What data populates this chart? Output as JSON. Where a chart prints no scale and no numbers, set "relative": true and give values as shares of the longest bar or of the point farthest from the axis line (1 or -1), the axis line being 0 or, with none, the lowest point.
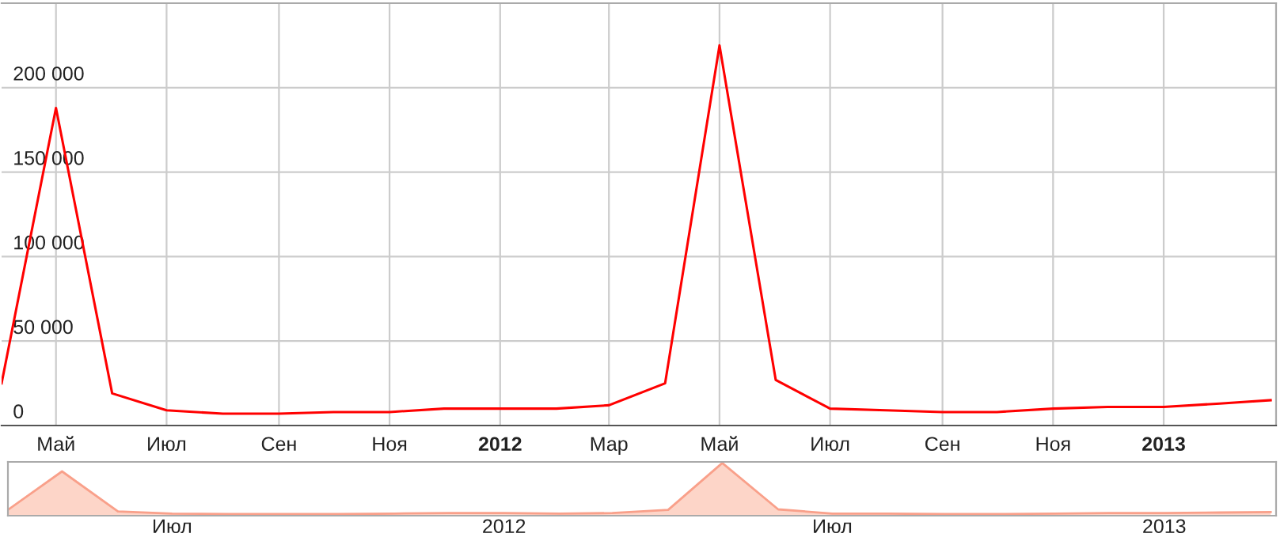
{
  "chart_data": [
    {
      "type": "line",
      "x": [
        "2011-04-01",
        "2011-05-01",
        "2011-06-01",
        "2011-07-01",
        "2011-08-01",
        "2011-09-01",
        "2011-10-01",
        "2011-11-01",
        "2011-12-01",
        "2012-01-01",
        "2012-02-01",
        "2012-03-01",
        "2012-04-01",
        "2012-05-01",
        "2012-06-01",
        "2012-07-01",
        "2012-08-01",
        "2012-09-01",
        "2012-10-01",
        "2012-11-01",
        "2012-12-01",
        "2013-01-01",
        "2013-02-01",
        "2013-03-01"
      ],
      "series": [
        {
          "color": "#ff0000",
          "values": [
            25000,
            188000,
            19000,
            9000,
            7000,
            7000,
            8000,
            8000,
            10000,
            10000,
            10000,
            12000,
            25000,
            225000,
            27000,
            10000,
            9000,
            8000,
            8000,
            10000,
            11000,
            11000,
            13000,
            15000
          ]
        }
      ],
      "xlim": [
        "2011-04-01",
        "2013-03-04"
      ],
      "xticks": [
        {
          "value": "2011-05-01",
          "label": "Май"
        },
        {
          "value": "2011-07-01",
          "label": "Июл"
        },
        {
          "value": "2011-09-01",
          "label": "Сен"
        },
        {
          "value": "2011-11-01",
          "label": "Ноя"
        },
        {
          "value": "2012-01-01",
          "label": "2012"
        },
        {
          "value": "2012-03-01",
          "label": "Мар"
        },
        {
          "value": "2012-05-01",
          "label": "Май"
        },
        {
          "value": "2012-07-01",
          "label": "Июл"
        },
        {
          "value": "2012-09-01",
          "label": "Сен"
        },
        {
          "value": "2012-11-01",
          "label": "Ноя"
        },
        {
          "value": "2013-01-01",
          "label": "2013"
        }
      ],
      "ylim": [
        0,
        250000
      ],
      "yticks": [
        0,
        {
          "value": 50000,
          "label": "50 000"
        },
        {
          "value": 100000,
          "label": "100 000"
        },
        {
          "value": 150000,
          "label": "150 000"
        },
        {
          "value": 200000,
          "label": "200 000"
        }
      ],
      "grid": true,
      "marker": "none",
      "line_style": "solid"
    },
    {
      "type": "area",
      "relative": true,
      "x": [
        "2011-04-01",
        "2011-05-01",
        "2011-06-01",
        "2011-07-01",
        "2011-08-01",
        "2011-09-01",
        "2011-10-01",
        "2011-11-01",
        "2011-12-01",
        "2012-01-01",
        "2012-02-01",
        "2012-03-01",
        "2012-04-01",
        "2012-05-01",
        "2012-06-01",
        "2012-07-01",
        "2012-08-01",
        "2012-09-01",
        "2012-10-01",
        "2012-11-01",
        "2012-12-01",
        "2013-01-01",
        "2013-02-01",
        "2013-03-01"
      ],
      "series": [
        {
          "color": "#f9a08a",
          "values": [
            0.11,
            0.84,
            0.08,
            0.04,
            0.03,
            0.03,
            0.03,
            0.04,
            0.05,
            0.05,
            0.04,
            0.05,
            0.11,
            1,
            0.12,
            0.04,
            0.04,
            0.03,
            0.03,
            0.04,
            0.05,
            0.05,
            0.06,
            0.07
          ]
        }
      ],
      "xlim": [
        "2011-04-01",
        "2013-03-04"
      ],
      "xticks": [
        {
          "value": "2011-07-01",
          "label": "Июл"
        },
        {
          "value": "2012-01-01",
          "label": "2012"
        },
        {
          "value": "2012-07-01",
          "label": "Июл"
        },
        {
          "value": "2013-01-01",
          "label": "2013"
        }
      ],
      "tick_labels": "x",
      "grid": false
    }
  ]
}
